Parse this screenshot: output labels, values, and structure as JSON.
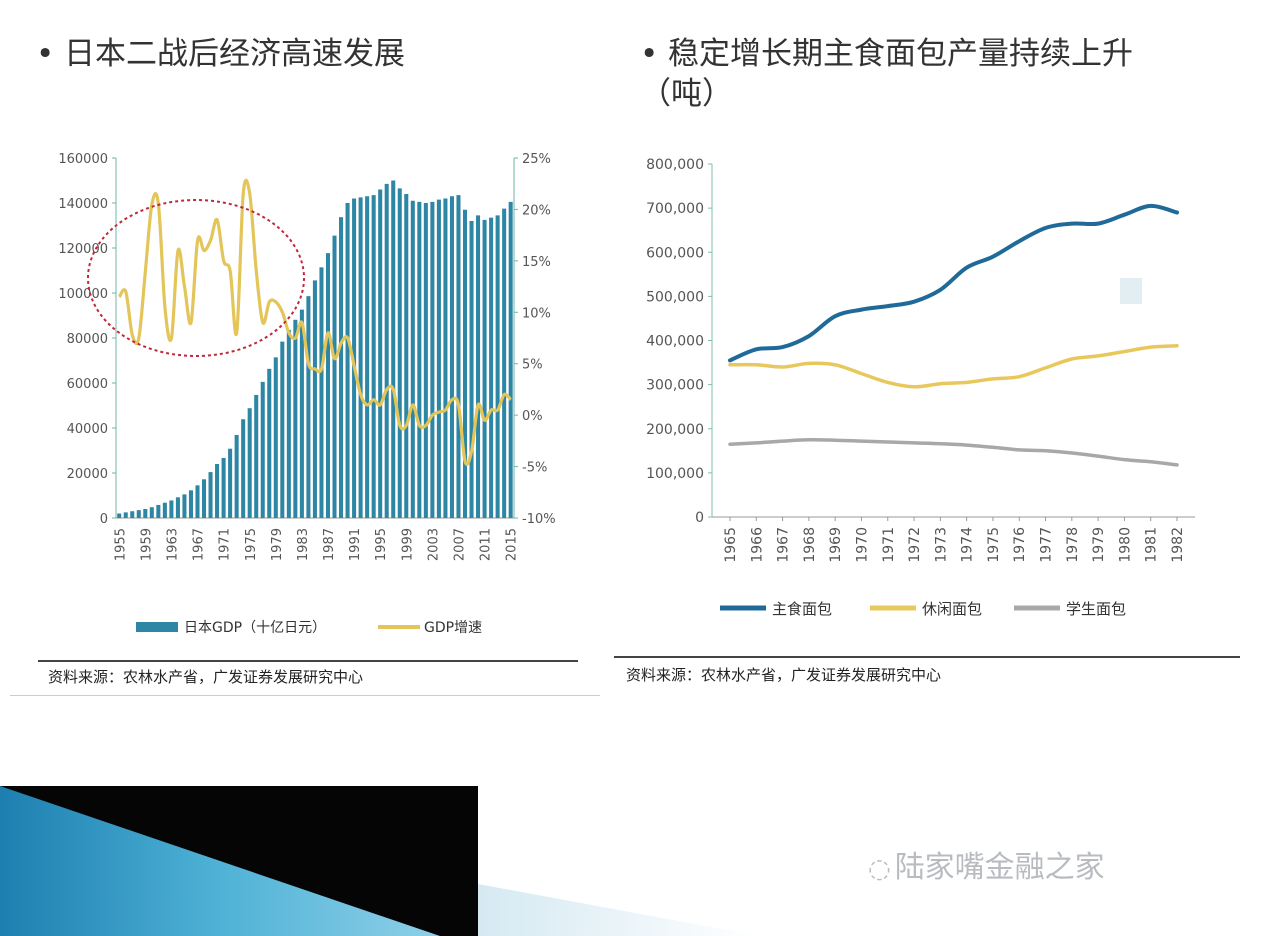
{
  "titles": {
    "left": "日本二战后经济高速发展",
    "right": "稳定增长期主食面包产量持续上升（吨）",
    "bullet": "•"
  },
  "source_left": "资料来源：农林水产省，广发证券发展研究中心",
  "source_right": "资料来源：农林水产省，广发证券发展研究中心",
  "watermark": "陆家嘴金融之家",
  "colors": {
    "gdp_bar": "#2e86a5",
    "growth_line": "#e3c55a",
    "staple": "#1f6a98",
    "casual": "#e8c85c",
    "school": "#a8a8a8",
    "circle": "#c0283c"
  },
  "chart_data": [
    {
      "type": "bar",
      "x_ticks": [
        "1955",
        "1959",
        "1963",
        "1967",
        "1971",
        "1975",
        "1979",
        "1983",
        "1987",
        "1991",
        "1995",
        "1999",
        "2003",
        "2007",
        "2011",
        "2015"
      ],
      "y_ticks": [
        "0",
        "20000",
        "40000",
        "60000",
        "80000",
        "100000",
        "120000",
        "140000",
        "160000"
      ],
      "y2_ticks": [
        "-10%",
        "-5%",
        "0%",
        "5%",
        "10%",
        "15%",
        "20%",
        "25%"
      ],
      "ylim": [
        0,
        160000
      ],
      "y2lim": [
        -10,
        25
      ],
      "legend": [
        {
          "name": "日本GDP（十亿日元）"
        },
        {
          "name": "GDP增速"
        }
      ],
      "x": [
        1955,
        1956,
        1957,
        1958,
        1959,
        1960,
        1961,
        1962,
        1963,
        1964,
        1965,
        1966,
        1967,
        1968,
        1969,
        1970,
        1971,
        1972,
        1973,
        1974,
        1975,
        1976,
        1977,
        1978,
        1979,
        1980,
        1981,
        1982,
        1983,
        1984,
        1985,
        1986,
        1987,
        1988,
        1989,
        1990,
        1991,
        1992,
        1993,
        1994,
        1995,
        1996,
        1997,
        1998,
        1999,
        2000,
        2001,
        2002,
        2003,
        2004,
        2005,
        2006,
        2007,
        2008,
        2009,
        2010,
        2011,
        2012,
        2013,
        2014,
        2015
      ],
      "gdp": [
        2000,
        2500,
        3000,
        3500,
        4000,
        4800,
        5800,
        6800,
        7800,
        9200,
        10500,
        12300,
        14500,
        17200,
        20400,
        24000,
        26700,
        30800,
        36900,
        43900,
        48800,
        54700,
        60500,
        66300,
        71400,
        78400,
        83600,
        88100,
        92600,
        98600,
        105600,
        111400,
        117700,
        125500,
        133700,
        140000,
        142000,
        142500,
        143000,
        143500,
        146000,
        148500,
        150000,
        146500,
        144000,
        141000,
        140500,
        140000,
        140500,
        141500,
        142000,
        143000,
        143500,
        137000,
        132000,
        134500,
        132500,
        133500,
        134500,
        137500,
        140500
      ],
      "growth": [
        11.5,
        12,
        7.8,
        7.5,
        14,
        20.5,
        20.5,
        10.5,
        7.5,
        16,
        12.5,
        9,
        17,
        16,
        17,
        19,
        15,
        14,
        8,
        21.5,
        21.5,
        14,
        9,
        11,
        11,
        10,
        8,
        7.5,
        9,
        5,
        4.5,
        4.5,
        8,
        5.5,
        7,
        7.5,
        4.8,
        2,
        1,
        1.5,
        1,
        2.5,
        2.5,
        -1,
        -1,
        1,
        -1,
        -1,
        0,
        0.3,
        0.5,
        1.5,
        1,
        -4.5,
        -3.5,
        1,
        -0.5,
        0.5,
        0.5,
        2,
        1.5
      ]
    },
    {
      "type": "line",
      "x": [
        "1965",
        "1966",
        "1967",
        "1968",
        "1969",
        "1970",
        "1971",
        "1972",
        "1973",
        "1974",
        "1975",
        "1976",
        "1977",
        "1978",
        "1979",
        "1980",
        "1981",
        "1982"
      ],
      "y_ticks": [
        "0",
        "100,000",
        "200,000",
        "300,000",
        "400,000",
        "500,000",
        "600,000",
        "700,000",
        "800,000"
      ],
      "ylim": [
        0,
        800000
      ],
      "series": [
        {
          "name": "主食面包",
          "values": [
            355000,
            380000,
            385000,
            410000,
            455000,
            470000,
            478000,
            488000,
            515000,
            565000,
            590000,
            625000,
            655000,
            665000,
            665000,
            685000,
            705000,
            690000
          ]
        },
        {
          "name": "休闲面包",
          "values": [
            345000,
            345000,
            340000,
            348000,
            345000,
            325000,
            305000,
            295000,
            302000,
            305000,
            313000,
            318000,
            338000,
            358000,
            365000,
            375000,
            385000,
            388000
          ]
        },
        {
          "name": "学生面包",
          "values": [
            165000,
            168000,
            172000,
            175000,
            174000,
            172000,
            170000,
            168000,
            166000,
            163000,
            158000,
            152000,
            150000,
            145000,
            138000,
            130000,
            125000,
            118000
          ]
        }
      ]
    }
  ]
}
